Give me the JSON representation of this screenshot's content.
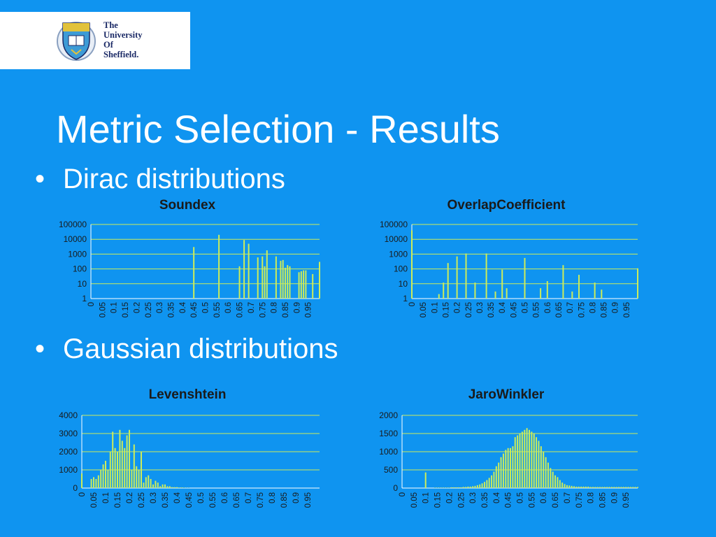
{
  "slide": {
    "title": "Metric Selection - Results",
    "bullets": [
      "Dirac distributions",
      "Gaussian distributions"
    ],
    "logo": {
      "line1": "The",
      "line2": "University",
      "line3": "Of",
      "line4": "Sheffield."
    }
  },
  "colors": {
    "background": "#0f94f0",
    "bar": "#ccec5a",
    "axis": "#ffffff",
    "text": "#1a1a1a"
  },
  "chart_data": [
    {
      "type": "bar",
      "title": "Soundex",
      "scale": "log",
      "ylim": [
        1,
        100000
      ],
      "yticks": [
        1,
        10,
        100,
        1000,
        10000,
        100000
      ],
      "x_tick_labels": [
        "0",
        "0.05",
        "0.1",
        "0.15",
        "0.2",
        "0.25",
        "0.3",
        "0.35",
        "0.4",
        "0.45",
        "0.5",
        "0.55",
        "0.6",
        "0.65",
        "0.7",
        "0.75",
        "0.8",
        "0.85",
        "0.9",
        "0.95"
      ],
      "grid": true,
      "bars": [
        {
          "x": 0.45,
          "y": 3000
        },
        {
          "x": 0.56,
          "y": 20000
        },
        {
          "x": 0.65,
          "y": 150
        },
        {
          "x": 0.67,
          "y": 9000
        },
        {
          "x": 0.69,
          "y": 5000
        },
        {
          "x": 0.73,
          "y": 600
        },
        {
          "x": 0.75,
          "y": 700
        },
        {
          "x": 0.76,
          "y": 150
        },
        {
          "x": 0.77,
          "y": 1800
        },
        {
          "x": 0.81,
          "y": 700
        },
        {
          "x": 0.83,
          "y": 350
        },
        {
          "x": 0.84,
          "y": 400
        },
        {
          "x": 0.85,
          "y": 120
        },
        {
          "x": 0.86,
          "y": 180
        },
        {
          "x": 0.87,
          "y": 150
        },
        {
          "x": 0.91,
          "y": 60
        },
        {
          "x": 0.92,
          "y": 70
        },
        {
          "x": 0.93,
          "y": 80
        },
        {
          "x": 0.94,
          "y": 80
        },
        {
          "x": 0.97,
          "y": 45
        },
        {
          "x": 1.0,
          "y": 300
        }
      ]
    },
    {
      "type": "bar",
      "title": "OverlapCoefficient",
      "scale": "log",
      "ylim": [
        1,
        100000
      ],
      "yticks": [
        1,
        10,
        100,
        1000,
        10000,
        100000
      ],
      "x_tick_labels": [
        "0",
        "0.05",
        "0.1",
        "0.15",
        "0.2",
        "0.25",
        "0.3",
        "0.35",
        "0.4",
        "0.45",
        "0.5",
        "0.55",
        "0.6",
        "0.65",
        "0.7",
        "0.75",
        "0.8",
        "0.85",
        "0.9",
        "0.95"
      ],
      "grid": true,
      "bars": [
        {
          "x": 0.0,
          "y": 40000
        },
        {
          "x": 0.12,
          "y": 2
        },
        {
          "x": 0.14,
          "y": 12
        },
        {
          "x": 0.16,
          "y": 250
        },
        {
          "x": 0.2,
          "y": 700
        },
        {
          "x": 0.24,
          "y": 1100
        },
        {
          "x": 0.28,
          "y": 12
        },
        {
          "x": 0.33,
          "y": 1100
        },
        {
          "x": 0.37,
          "y": 3
        },
        {
          "x": 0.4,
          "y": 90
        },
        {
          "x": 0.42,
          "y": 5
        },
        {
          "x": 0.5,
          "y": 550
        },
        {
          "x": 0.57,
          "y": 5
        },
        {
          "x": 0.6,
          "y": 15
        },
        {
          "x": 0.67,
          "y": 180
        },
        {
          "x": 0.71,
          "y": 3
        },
        {
          "x": 0.74,
          "y": 40
        },
        {
          "x": 0.81,
          "y": 12
        },
        {
          "x": 0.84,
          "y": 4
        },
        {
          "x": 1.0,
          "y": 110
        }
      ]
    },
    {
      "type": "bar",
      "title": "Levenshtein",
      "scale": "linear",
      "ylim": [
        0,
        4000
      ],
      "yticks": [
        0,
        1000,
        2000,
        3000,
        4000
      ],
      "x_tick_labels": [
        "0",
        "0.05",
        "0.1",
        "0.15",
        "0.2",
        "0.25",
        "0.3",
        "0.35",
        "0.4",
        "0.45",
        "0.5",
        "0.55",
        "0.6",
        "0.65",
        "0.7",
        "0.75",
        "0.8",
        "0.85",
        "0.9",
        "0.95"
      ],
      "grid": true,
      "x_step": 0.01,
      "values": [
        800,
        0,
        0,
        0,
        500,
        600,
        500,
        700,
        1000,
        1300,
        1500,
        1000,
        2000,
        3100,
        2200,
        2000,
        3200,
        2600,
        2200,
        2900,
        3200,
        1000,
        2400,
        1200,
        1000,
        2000,
        300,
        600,
        700,
        500,
        200,
        400,
        300,
        100,
        200,
        200,
        100,
        100,
        50,
        50,
        50,
        30,
        30,
        20,
        10,
        10,
        0,
        0,
        0,
        0,
        0,
        0,
        0,
        0,
        0,
        0,
        0,
        0,
        0,
        0,
        0,
        0,
        0,
        0,
        0,
        0,
        0,
        0,
        0,
        0,
        0,
        0,
        0,
        0,
        0,
        0,
        0,
        0,
        0,
        0,
        0,
        0,
        0,
        0,
        0,
        0,
        0,
        0,
        0,
        0,
        0,
        0,
        0,
        0,
        0,
        0,
        0,
        0,
        0,
        0,
        0
      ]
    },
    {
      "type": "bar",
      "title": "JaroWinkler",
      "scale": "linear",
      "ylim": [
        0,
        2000
      ],
      "yticks": [
        0,
        500,
        1000,
        1500,
        2000
      ],
      "x_tick_labels": [
        "0",
        "0.05",
        "0.1",
        "0.15",
        "0.2",
        "0.25",
        "0.3",
        "0.35",
        "0.4",
        "0.45",
        "0.5",
        "0.55",
        "0.6",
        "0.65",
        "0.7",
        "0.75",
        "0.8",
        "0.85",
        "0.9",
        "0.95"
      ],
      "grid": true,
      "x_step": 0.01,
      "values": [
        0,
        0,
        0,
        0,
        0,
        0,
        0,
        0,
        0,
        0,
        430,
        0,
        0,
        0,
        10,
        10,
        10,
        10,
        10,
        10,
        10,
        20,
        20,
        20,
        20,
        20,
        30,
        30,
        40,
        40,
        50,
        60,
        80,
        100,
        130,
        170,
        220,
        280,
        350,
        450,
        600,
        700,
        850,
        950,
        1050,
        1100,
        1100,
        1150,
        1400,
        1450,
        1500,
        1550,
        1600,
        1650,
        1600,
        1550,
        1500,
        1400,
        1300,
        1150,
        1000,
        850,
        700,
        550,
        450,
        350,
        300,
        220,
        150,
        110,
        80,
        70,
        60,
        50,
        40,
        40,
        40,
        40,
        40,
        40,
        30,
        30,
        30,
        30,
        30,
        30,
        30,
        30,
        30,
        30,
        30,
        30,
        30,
        30,
        30,
        30,
        30,
        30,
        30,
        30,
        30
      ]
    }
  ]
}
